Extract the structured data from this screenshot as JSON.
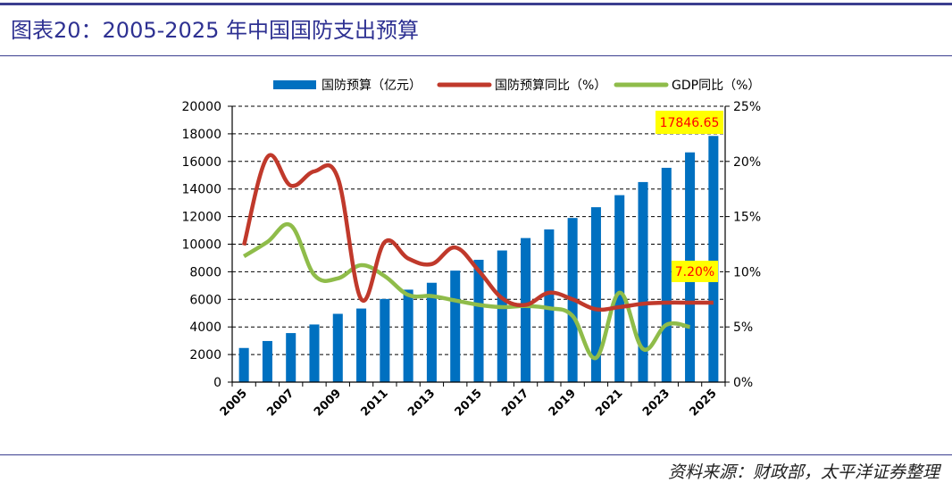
{
  "title": "图表20：2005-2025 年中国国防支出预算",
  "source": "资料来源：财政部，太平洋证券整理",
  "colors": {
    "bar": "#0070c0",
    "budget_line": "#c0392b",
    "gdp_line": "#8fbc4a",
    "callout_bg": "#ffff00",
    "callout_text": "#ff0000",
    "title": "#2e3192"
  },
  "chart_data": {
    "type": "bar",
    "categories": [
      "2005",
      "2006",
      "2007",
      "2008",
      "2009",
      "2010",
      "2011",
      "2012",
      "2013",
      "2014",
      "2015",
      "2016",
      "2017",
      "2018",
      "2019",
      "2020",
      "2021",
      "2022",
      "2023",
      "2024",
      "2025"
    ],
    "x_tick_labels": [
      "2005",
      "2007",
      "2009",
      "2011",
      "2013",
      "2015",
      "2017",
      "2019",
      "2021",
      "2023",
      "2025"
    ],
    "series": [
      {
        "name": "国防预算（亿元）",
        "type": "bar",
        "axis": "left",
        "values": [
          2475,
          2980,
          3555,
          4178,
          4951,
          5335,
          6028,
          6703,
          7202,
          8083,
          8869,
          9544,
          10444,
          11070,
          11899,
          12680,
          13553,
          14504,
          15537,
          16655,
          17846.65
        ]
      },
      {
        "name": "国防预算同比（%）",
        "type": "line",
        "axis": "right",
        "values": [
          12.4,
          20.4,
          17.8,
          19.1,
          18.5,
          7.5,
          12.7,
          11.2,
          10.7,
          12.2,
          10.1,
          7.6,
          7.0,
          8.1,
          7.5,
          6.6,
          6.8,
          7.1,
          7.2,
          7.2,
          7.2
        ]
      },
      {
        "name": "GDP同比（%）",
        "type": "line",
        "axis": "right",
        "values": [
          11.4,
          12.7,
          14.2,
          9.7,
          9.4,
          10.6,
          9.6,
          7.9,
          7.8,
          7.4,
          7.0,
          6.8,
          6.9,
          6.7,
          6.0,
          2.2,
          8.1,
          3.0,
          5.2,
          5.0,
          null
        ]
      }
    ],
    "y_left": {
      "lim": [
        0,
        20000
      ],
      "ticks": [
        0,
        2000,
        4000,
        6000,
        8000,
        10000,
        12000,
        14000,
        16000,
        18000,
        20000
      ]
    },
    "y_right": {
      "lim": [
        0,
        25
      ],
      "ticks": [
        0,
        5,
        10,
        15,
        20,
        25
      ],
      "tick_labels": [
        "0%",
        "5%",
        "10%",
        "15%",
        "20%",
        "25%"
      ]
    },
    "grid": "horizontal dashed",
    "legend_position": "top",
    "annotations": [
      {
        "text": "17846.65",
        "category": "2025",
        "target": "bar"
      },
      {
        "text": "7.20%",
        "category": "2025",
        "target": "line"
      }
    ]
  }
}
